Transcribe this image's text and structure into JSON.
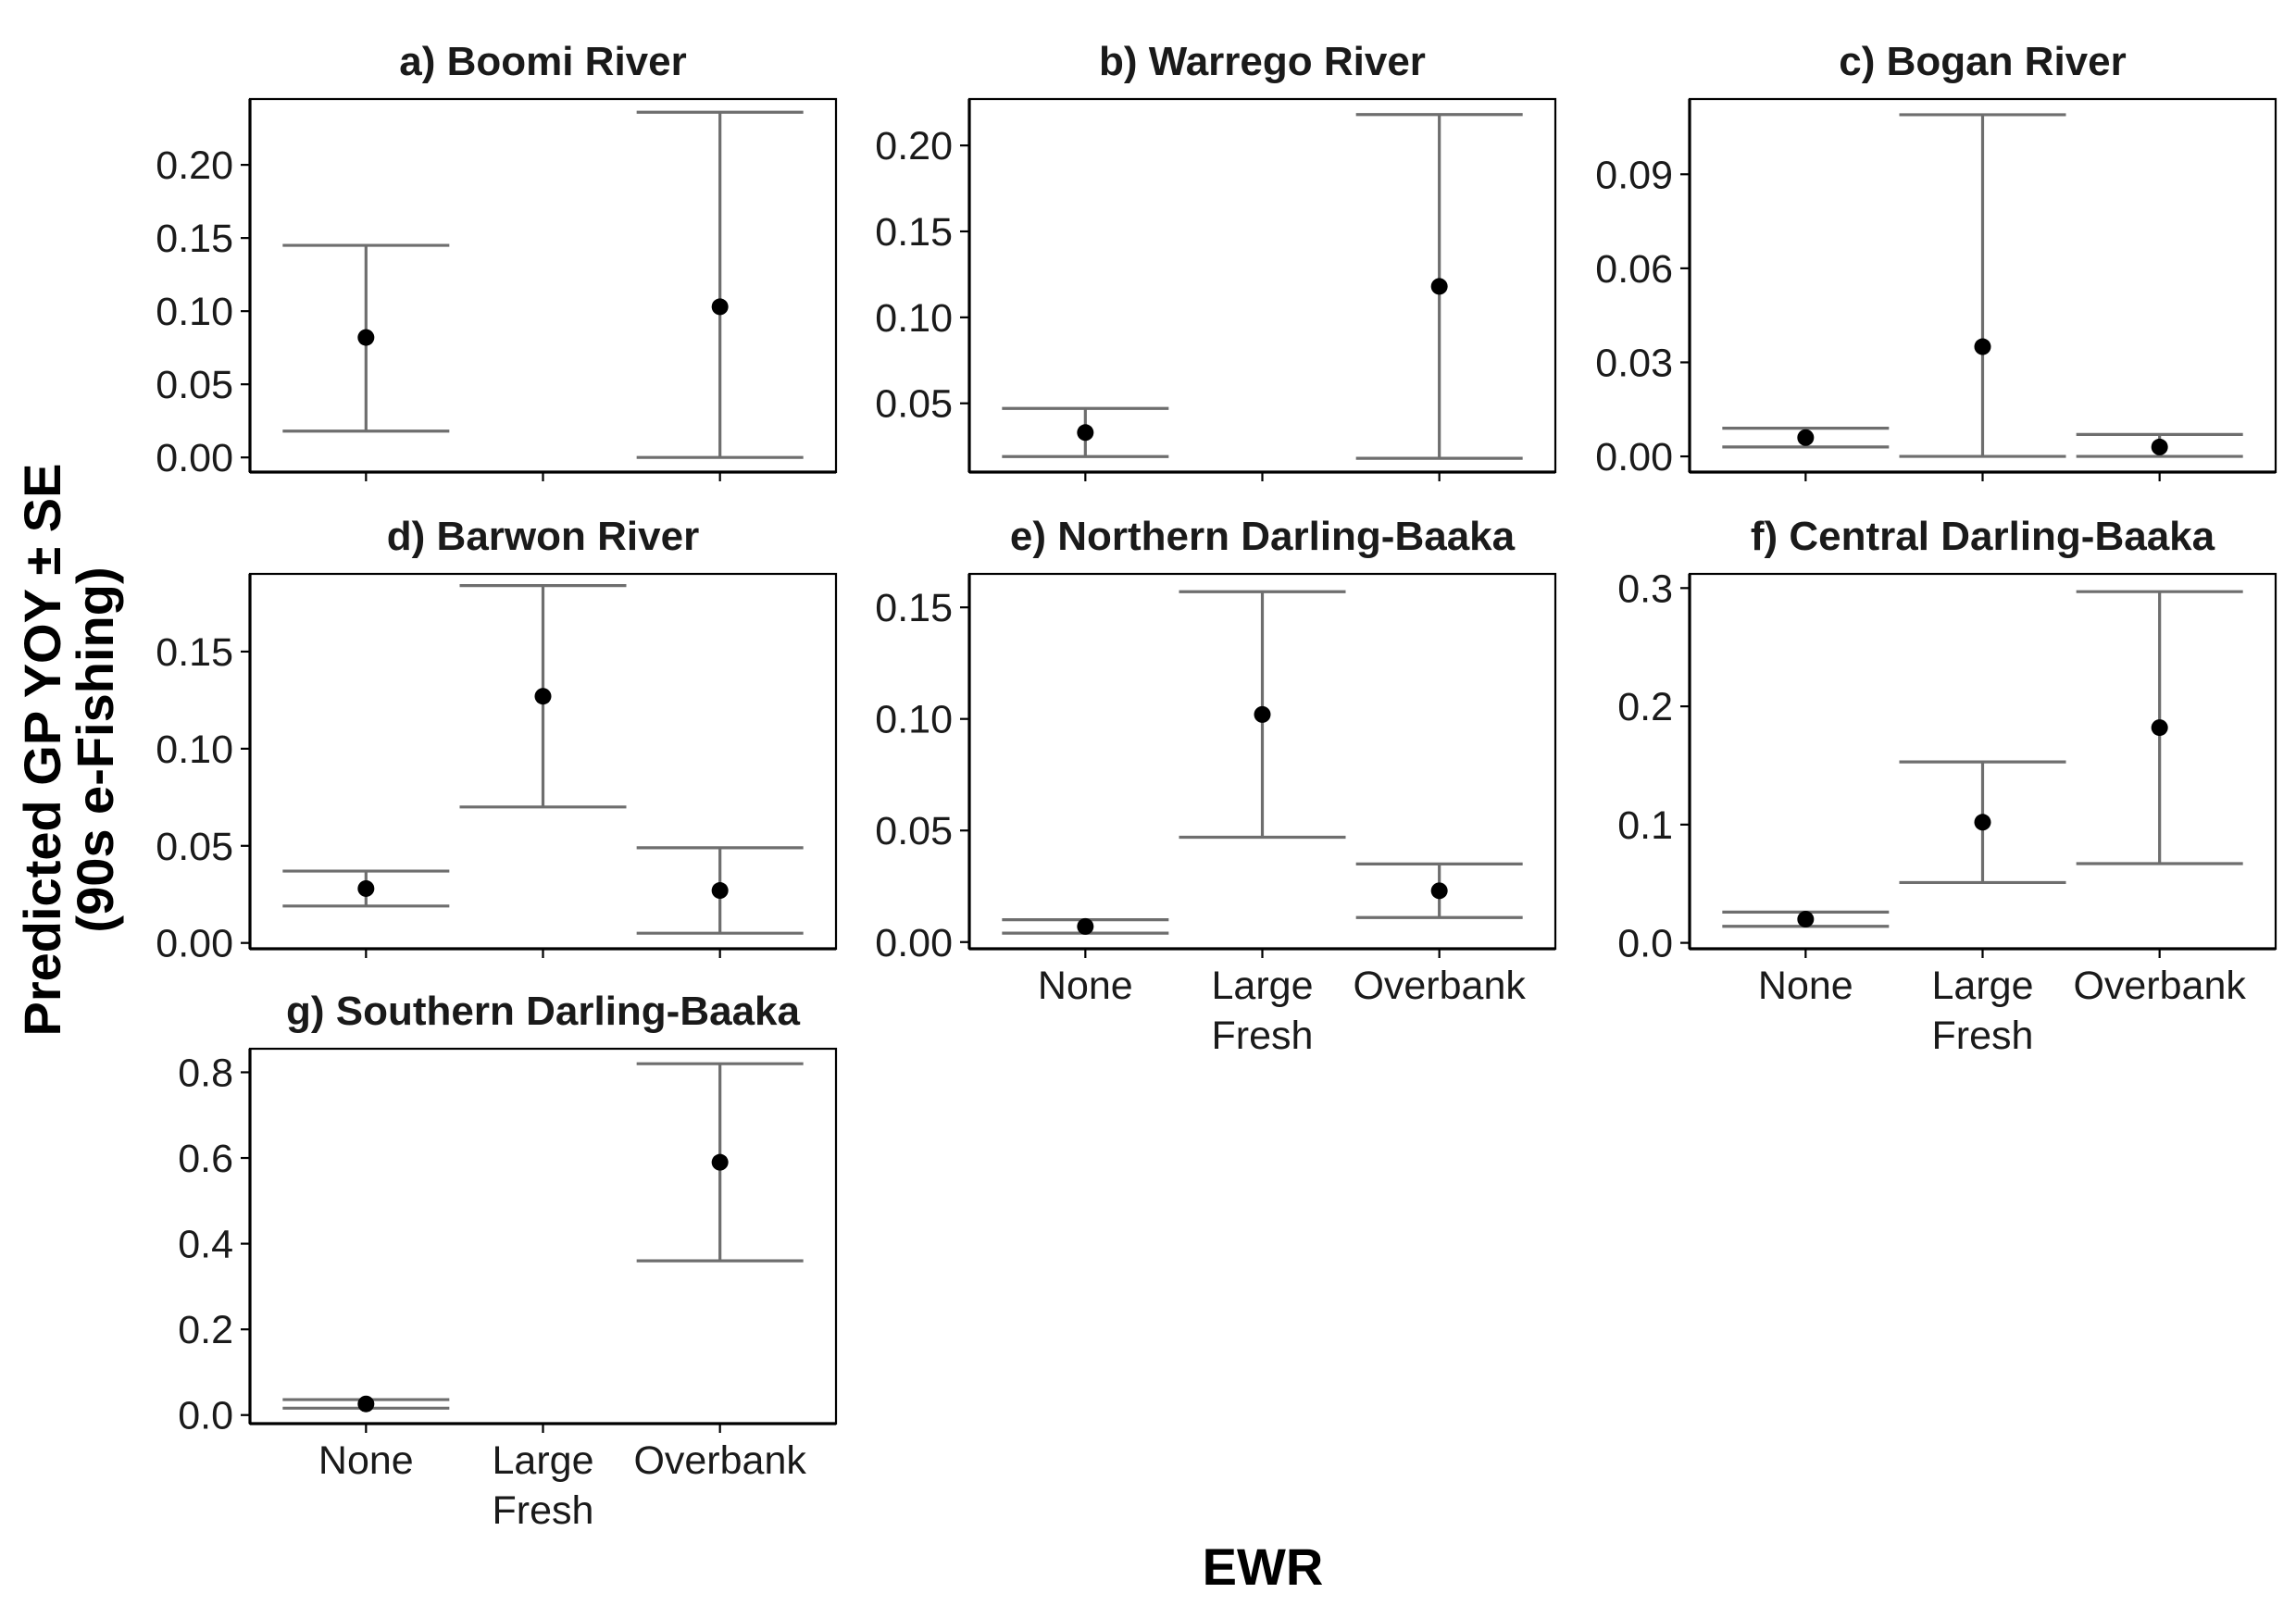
{
  "chart_data": {
    "type": "errorbar",
    "xlabel": "EWR",
    "ylabel_lines": [
      "Predicted GP YOY ± SE",
      "(90s e-Fishing)"
    ],
    "categories": [
      "None",
      "Large Fresh",
      "Overbank"
    ],
    "category_label_lines": [
      [
        "None"
      ],
      [
        "Large",
        "Fresh"
      ],
      [
        "Overbank"
      ]
    ],
    "colors": {
      "point": "#000000",
      "errorbar": "#6e6e6e",
      "axis": "#000000"
    },
    "panels": [
      {
        "title": "a) Boomi River",
        "ylim": [
          -0.01,
          0.245
        ],
        "yticks": [
          0.0,
          0.05,
          0.1,
          0.15,
          0.2
        ],
        "ytick_labels": [
          "0.00",
          "0.05",
          "0.10",
          "0.15",
          "0.20"
        ],
        "show_x_labels": false,
        "points": [
          {
            "category": "None",
            "y": 0.082,
            "lower": 0.018,
            "upper": 0.145
          },
          {
            "category": "Overbank",
            "y": 0.103,
            "lower": 0.0,
            "upper": 0.236
          }
        ]
      },
      {
        "title": "b) Warrego River",
        "ylim": [
          0.01,
          0.227
        ],
        "yticks": [
          0.05,
          0.1,
          0.15,
          0.2
        ],
        "ytick_labels": [
          "0.05",
          "0.10",
          "0.15",
          "0.20"
        ],
        "show_x_labels": false,
        "points": [
          {
            "category": "None",
            "y": 0.033,
            "lower": 0.019,
            "upper": 0.047
          },
          {
            "category": "Overbank",
            "y": 0.118,
            "lower": 0.018,
            "upper": 0.218
          }
        ]
      },
      {
        "title": "c) Bogan River",
        "ylim": [
          -0.005,
          0.114
        ],
        "yticks": [
          0.0,
          0.03,
          0.06,
          0.09
        ],
        "ytick_labels": [
          "0.00",
          "0.03",
          "0.06",
          "0.09"
        ],
        "show_x_labels": false,
        "points": [
          {
            "category": "None",
            "y": 0.006,
            "lower": 0.003,
            "upper": 0.009
          },
          {
            "category": "Large Fresh",
            "y": 0.035,
            "lower": 0.0,
            "upper": 0.109
          },
          {
            "category": "Overbank",
            "y": 0.003,
            "lower": 0.0,
            "upper": 0.007
          }
        ]
      },
      {
        "title": "d) Barwon River",
        "ylim": [
          -0.003,
          0.19
        ],
        "yticks": [
          0.0,
          0.05,
          0.1,
          0.15
        ],
        "ytick_labels": [
          "0.00",
          "0.05",
          "0.10",
          "0.15"
        ],
        "show_x_labels": false,
        "points": [
          {
            "category": "None",
            "y": 0.028,
            "lower": 0.019,
            "upper": 0.037
          },
          {
            "category": "Large Fresh",
            "y": 0.127,
            "lower": 0.07,
            "upper": 0.184
          },
          {
            "category": "Overbank",
            "y": 0.027,
            "lower": 0.005,
            "upper": 0.049
          }
        ]
      },
      {
        "title": "e) Northern Darling-Baaka",
        "ylim": [
          -0.003,
          0.165
        ],
        "yticks": [
          0.0,
          0.05,
          0.1,
          0.15
        ],
        "ytick_labels": [
          "0.00",
          "0.05",
          "0.10",
          "0.15"
        ],
        "show_x_labels": true,
        "points": [
          {
            "category": "None",
            "y": 0.007,
            "lower": 0.004,
            "upper": 0.01
          },
          {
            "category": "Large Fresh",
            "y": 0.102,
            "lower": 0.047,
            "upper": 0.157
          },
          {
            "category": "Overbank",
            "y": 0.023,
            "lower": 0.011,
            "upper": 0.035
          }
        ]
      },
      {
        "title": "f) Central Darling-Baaka",
        "ylim": [
          -0.005,
          0.312
        ],
        "yticks": [
          0.0,
          0.1,
          0.2,
          0.3
        ],
        "ytick_labels": [
          "0.0",
          "0.1",
          "0.2",
          "0.3"
        ],
        "show_x_labels": true,
        "points": [
          {
            "category": "None",
            "y": 0.02,
            "lower": 0.014,
            "upper": 0.026
          },
          {
            "category": "Large Fresh",
            "y": 0.102,
            "lower": 0.051,
            "upper": 0.153
          },
          {
            "category": "Overbank",
            "y": 0.182,
            "lower": 0.067,
            "upper": 0.297
          }
        ]
      },
      {
        "title": "g) Southern Darling-Baaka",
        "ylim": [
          -0.02,
          0.855
        ],
        "yticks": [
          0.0,
          0.2,
          0.4,
          0.6,
          0.8
        ],
        "ytick_labels": [
          "0.0",
          "0.2",
          "0.4",
          "0.6",
          "0.8"
        ],
        "show_x_labels": true,
        "points": [
          {
            "category": "None",
            "y": 0.026,
            "lower": 0.016,
            "upper": 0.036
          },
          {
            "category": "Overbank",
            "y": 0.59,
            "lower": 0.36,
            "upper": 0.82
          }
        ]
      }
    ]
  }
}
